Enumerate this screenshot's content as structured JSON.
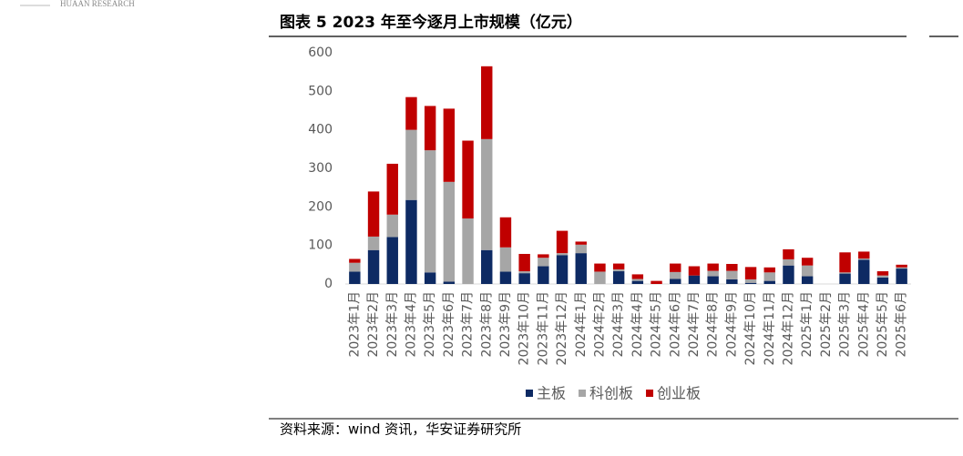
{
  "header": {
    "brand": "HUAAN RESEARCH"
  },
  "chart_data": {
    "type": "stacked_bar",
    "title": "图表 5 2023 年至今逐月上市规模（亿元）",
    "categories": [
      "2023年1月",
      "2023年2月",
      "2023年3月",
      "2023年4月",
      "2023年5月",
      "2023年6月",
      "2023年7月",
      "2023年8月",
      "2023年9月",
      "2023年10月",
      "2023年11月",
      "2023年12月",
      "2024年1月",
      "2024年2月",
      "2024年3月",
      "2024年4月",
      "2024年5月",
      "2024年6月",
      "2024年7月",
      "2024年8月",
      "2024年9月",
      "2024年10月",
      "2024年11月",
      "2024年12月",
      "2025年1月",
      "2025年2月",
      "2025年3月",
      "2025年4月",
      "2025年5月",
      "2025年6月"
    ],
    "series": [
      {
        "name": "主板",
        "color": "#0d2a63",
        "values": [
          32,
          88,
          122,
          218,
          30,
          6,
          0,
          88,
          32,
          28,
          46,
          75,
          80,
          0,
          33,
          8,
          0,
          13,
          22,
          20,
          12,
          3,
          8,
          48,
          20,
          0,
          27,
          63,
          17,
          40
        ]
      },
      {
        "name": "科创板",
        "color": "#a6a6a6",
        "values": [
          23,
          35,
          58,
          182,
          317,
          259,
          170,
          288,
          63,
          5,
          22,
          5,
          22,
          32,
          5,
          5,
          0,
          18,
          0,
          14,
          22,
          9,
          22,
          16,
          28,
          0,
          3,
          3,
          5,
          3
        ]
      },
      {
        "name": "创业板",
        "color": "#c00000",
        "values": [
          10,
          117,
          132,
          85,
          115,
          190,
          202,
          189,
          78,
          45,
          9,
          58,
          8,
          21,
          15,
          12,
          8,
          22,
          24,
          19,
          18,
          32,
          13,
          26,
          20,
          0,
          52,
          18,
          11,
          7
        ]
      }
    ],
    "ylim": [
      0,
      600
    ],
    "yticks": [
      0,
      100,
      200,
      300,
      400,
      500,
      600
    ],
    "legend": "bottom"
  },
  "source": "资料来源：wind 资讯，华安证券研究所"
}
